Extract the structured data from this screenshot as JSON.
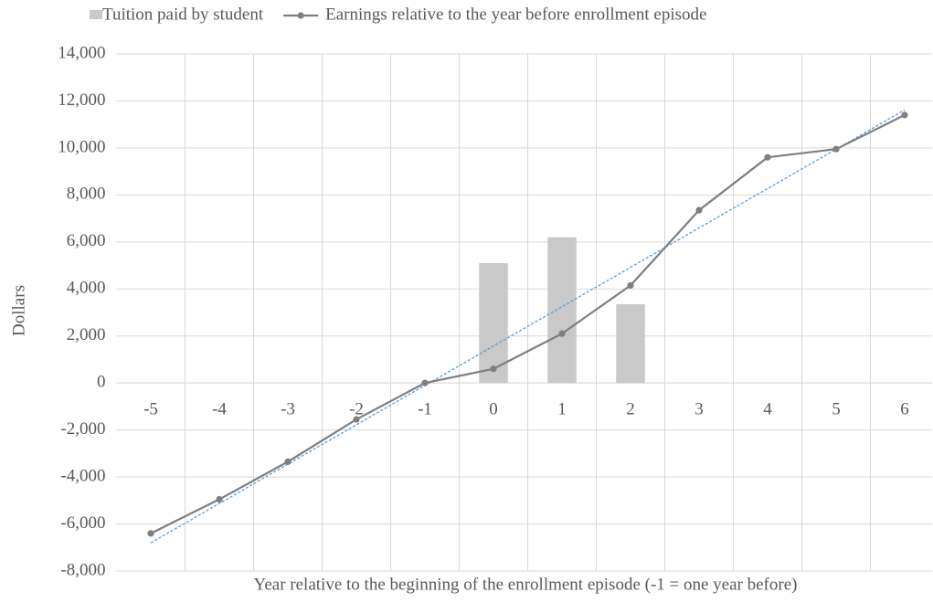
{
  "chart_data": {
    "type": "bar_line",
    "legend": "top",
    "x_label": "Year relative to the beginning  of the enrollment episode (-1 = one year before)",
    "y_label": "Dollars",
    "categories": [
      "-5",
      "-4",
      "-3",
      "-2",
      "-1",
      "0",
      "1",
      "2",
      "3",
      "4",
      "5",
      "6"
    ],
    "series": [
      {
        "name": "Tuition paid by student",
        "type": "bar",
        "color": "#c9c9c9",
        "values": [
          null,
          null,
          null,
          null,
          null,
          5100,
          6200,
          3350,
          null,
          null,
          null,
          null
        ]
      },
      {
        "name": "Earnings relative to the year before enrollment episode",
        "type": "line",
        "color": "#7f7f7f",
        "values": [
          -6400,
          -4950,
          -3350,
          -1550,
          0,
          600,
          2100,
          4150,
          7350,
          9600,
          9950,
          11400
        ],
        "trendline": {
          "type": "linear",
          "color": "#5b9bd5",
          "dashed": true
        }
      }
    ],
    "ylim": [
      -8000,
      14000
    ],
    "yticks": [
      {
        "value": -8000,
        "label": "-8,000"
      },
      {
        "value": -6000,
        "label": "-6,000"
      },
      {
        "value": -4000,
        "label": "-4,000"
      },
      {
        "value": -2000,
        "label": "-2,000"
      },
      0,
      {
        "value": 2000,
        "label": "2,000"
      },
      {
        "value": 4000,
        "label": "4,000"
      },
      {
        "value": 6000,
        "label": "6,000"
      },
      {
        "value": 8000,
        "label": "8,000"
      },
      {
        "value": 10000,
        "label": "10,000"
      },
      {
        "value": 12000,
        "label": "12,000"
      },
      {
        "value": 14000,
        "label": "14,000"
      }
    ],
    "grid": true
  }
}
